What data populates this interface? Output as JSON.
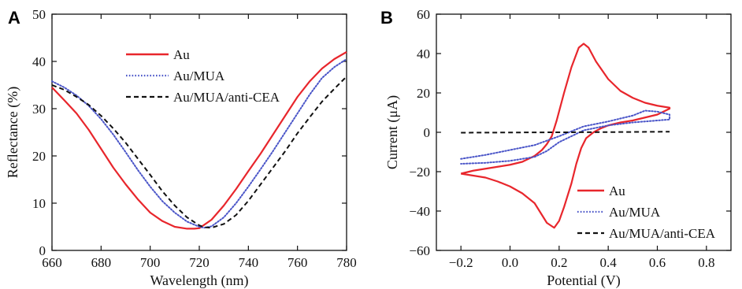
{
  "chart_data": [
    {
      "panel_label": "A",
      "type": "line",
      "xlabel": "Wavelength (nm)",
      "ylabel": "Reflectance (%)",
      "xlim": [
        660,
        780
      ],
      "ylim": [
        0,
        50
      ],
      "xticks": [
        660,
        680,
        700,
        720,
        740,
        760,
        780
      ],
      "yticks": [
        0,
        10,
        20,
        30,
        40,
        50
      ],
      "grid": false,
      "legend_position": "top-center",
      "series": [
        {
          "name": "Au",
          "color": "#e8262c",
          "dash": "solid",
          "x": [
            660,
            665,
            670,
            675,
            680,
            685,
            690,
            695,
            700,
            705,
            710,
            715,
            718,
            720,
            725,
            730,
            735,
            740,
            745,
            750,
            755,
            760,
            765,
            770,
            775,
            780
          ],
          "y": [
            34.5,
            31.8,
            29,
            25.5,
            21.5,
            17.5,
            14,
            10.8,
            8,
            6.2,
            5,
            4.6,
            4.6,
            4.7,
            6.5,
            9.5,
            13,
            16.8,
            20.5,
            24.5,
            28.5,
            32.5,
            35.8,
            38.5,
            40.5,
            42
          ]
        },
        {
          "name": "Au/MUA",
          "color": "#4a55c8",
          "dash": "dotted",
          "x": [
            660,
            665,
            670,
            675,
            680,
            685,
            690,
            695,
            700,
            705,
            710,
            715,
            720,
            722,
            725,
            730,
            735,
            740,
            745,
            750,
            755,
            760,
            765,
            770,
            775,
            780
          ],
          "y": [
            35.8,
            34.5,
            32.8,
            30.6,
            27.8,
            24.5,
            20.8,
            17,
            13.5,
            10.4,
            8,
            6.1,
            5,
            4.8,
            5.1,
            7,
            10,
            13.5,
            17.2,
            21,
            25,
            29,
            33,
            36.5,
            38.8,
            40.5
          ]
        },
        {
          "name": "Au/MUA/anti-CEA",
          "color": "#111111",
          "dash": "dashed",
          "x": [
            660,
            665,
            670,
            675,
            680,
            685,
            690,
            695,
            700,
            705,
            710,
            715,
            720,
            722,
            725,
            730,
            735,
            740,
            745,
            750,
            755,
            760,
            765,
            770,
            775,
            780
          ],
          "y": [
            35,
            34,
            32.5,
            30.8,
            28.5,
            25.8,
            22.8,
            19.4,
            16,
            12.5,
            9.5,
            7,
            5.3,
            4.9,
            4.8,
            5.6,
            7.5,
            10.5,
            14,
            17.5,
            21,
            24.8,
            28.2,
            31.5,
            34.2,
            36.8
          ]
        }
      ]
    },
    {
      "panel_label": "B",
      "type": "line",
      "xlabel": "Potential (V)",
      "ylabel": "Current (μA)",
      "xlim": [
        -0.3,
        0.9
      ],
      "ylim": [
        -60,
        60
      ],
      "xticks": [
        -0.2,
        0.0,
        0.2,
        0.4,
        0.6,
        0.8
      ],
      "xtick_labels": [
        "−0.2",
        "0.0",
        "0.2",
        "0.4",
        "0.6",
        "0.8"
      ],
      "yticks": [
        -60,
        -40,
        -20,
        0,
        20,
        40,
        60
      ],
      "ytick_labels": [
        "−60",
        "−40",
        "−20",
        "0",
        "20",
        "40",
        "60"
      ],
      "grid": false,
      "legend_position": "bottom-right",
      "series": [
        {
          "name": "Au",
          "color": "#e8262c",
          "dash": "solid",
          "x": [
            -0.2,
            -0.15,
            -0.1,
            -0.05,
            0.0,
            0.05,
            0.1,
            0.13,
            0.15,
            0.17,
            0.19,
            0.22,
            0.25,
            0.28,
            0.3,
            0.32,
            0.35,
            0.4,
            0.45,
            0.5,
            0.55,
            0.6,
            0.65,
            0.65,
            0.6,
            0.55,
            0.5,
            0.45,
            0.4,
            0.37,
            0.34,
            0.31,
            0.29,
            0.27,
            0.25,
            0.22,
            0.2,
            0.18,
            0.15,
            0.12,
            0.1,
            0.05,
            0.0,
            -0.05,
            -0.1,
            -0.15,
            -0.2
          ],
          "y": [
            -21,
            -19.5,
            -18.5,
            -17.5,
            -16.5,
            -15,
            -12,
            -9,
            -6,
            -2,
            6,
            20,
            33,
            43,
            45,
            43,
            36,
            27,
            21,
            17.5,
            15,
            13.5,
            12.5,
            12,
            9,
            7.5,
            6,
            5,
            3.5,
            2,
            0,
            -3,
            -8,
            -16,
            -26,
            -38,
            -45,
            -48.5,
            -46,
            -40,
            -36,
            -31,
            -27.5,
            -25,
            -23,
            -22,
            -21
          ]
        },
        {
          "name": "Au/MUA",
          "color": "#4a55c8",
          "dash": "dotted",
          "x": [
            -0.2,
            -0.1,
            0.0,
            0.1,
            0.2,
            0.3,
            0.4,
            0.5,
            0.55,
            0.6,
            0.65,
            0.65,
            0.6,
            0.5,
            0.4,
            0.3,
            0.2,
            0.15,
            0.1,
            0.0,
            -0.1,
            -0.2
          ],
          "y": [
            -13.5,
            -11.5,
            -9,
            -6.5,
            -2,
            3,
            5.5,
            8.5,
            11,
            10.5,
            9,
            6.5,
            6,
            5,
            3.5,
            1,
            -5,
            -9.5,
            -12.5,
            -14.5,
            -15.5,
            -16
          ]
        },
        {
          "name": "Au/MUA/anti-CEA",
          "color": "#111111",
          "dash": "dashed",
          "x": [
            -0.2,
            0.0,
            0.2,
            0.4,
            0.65
          ],
          "y": [
            -0.2,
            -0.1,
            0.0,
            0.1,
            0.3
          ]
        }
      ]
    }
  ]
}
